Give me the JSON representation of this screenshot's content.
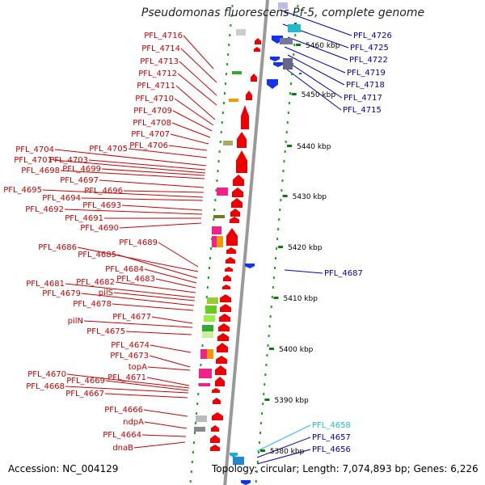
{
  "title": "Pseudomonas fluorescens Pf-5, complete genome",
  "footer": {
    "accession": "Accession: NC_004129",
    "topology": "Topology: circular; Length: 7,074,893 bp; Genes: 6,226"
  },
  "colors": {
    "left_label": "#cc0000",
    "right_label": "#0000bb",
    "highlight_label": "#22bbdd",
    "backbone": "#999999",
    "tick_dots": "#11aa11"
  },
  "kbp_scale": [
    "5460 kbp",
    "5450 kbp",
    "5440 kbp",
    "5430 kbp",
    "5420 kbp",
    "5410 kbp",
    "5400 kbp",
    "5390 kbp",
    "5380 kbp"
  ],
  "left_labels": [
    "PFL_4716",
    "PFL_4714",
    "PFL_4713",
    "PFL_4712",
    "PFL_4711",
    "PFL_4710",
    "PFL_4709",
    "PFL_4708",
    "PFL_4707",
    "PFL_4706",
    "PFL_4705",
    "PFL_4704",
    "PFL_4703",
    "PFL_4701",
    "PFL_4699",
    "PFL_4698",
    "PFL_4697",
    "PFL_4696",
    "PFL_4695",
    "PFL_4694",
    "PFL_4693",
    "PFL_4692",
    "PFL_4691",
    "PFL_4690",
    "PFL_4689",
    "PFL_4686",
    "PFL_4685",
    "PFL_4684",
    "PFL_4683",
    "PFL_4682",
    "PFL_4681",
    "pilS",
    "PFL_4679",
    "PFL_4678",
    "PFL_4677",
    "pilN",
    "PFL_4675",
    "PFL_4674",
    "PFL_4673",
    "topA",
    "PFL_4671",
    "PFL_4670",
    "PFL_4669",
    "PFL_4668",
    "PFL_4667",
    "PFL_4666",
    "ndpA",
    "PFL_4664",
    "dnaB"
  ],
  "right_labels": [
    "PFL_4726",
    "PFL_4725",
    "PFL_4722",
    "PFL_4719",
    "PFL_4718",
    "PFL_4717",
    "PFL_4715",
    "PFL_4687",
    "PFL_4658",
    "PFL_4657",
    "PFL_4656"
  ]
}
